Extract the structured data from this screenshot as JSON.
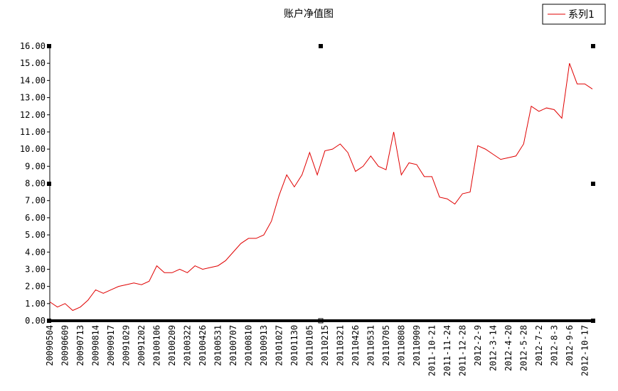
{
  "chart_data": {
    "type": "line",
    "title": "账户净值图",
    "categories": [
      "20090504",
      null,
      "20090609",
      null,
      "20090713",
      null,
      "20090814",
      null,
      "20090917",
      null,
      "20091029",
      null,
      "20091202",
      null,
      "20100106",
      null,
      "20100209",
      null,
      "20100322",
      null,
      "20100426",
      null,
      "20100531",
      null,
      "20100707",
      null,
      "20100810",
      null,
      "20100913",
      null,
      "20101027",
      null,
      "20101130",
      null,
      "20110105",
      null,
      "20110215",
      null,
      "20110321",
      null,
      "20110426",
      null,
      "20110531",
      null,
      "20110705",
      null,
      "20110808",
      null,
      "20110909",
      null,
      "2011-10-21",
      null,
      "2011-11-24",
      null,
      "2011-12-28",
      null,
      "2012-2-9",
      null,
      "2012-3-14",
      null,
      "2012-4-20",
      null,
      "2012-5-28",
      null,
      "2012-7-2",
      null,
      "2012-8-3",
      null,
      "2012-9-6",
      null,
      "2012-10-17",
      null
    ],
    "series": [
      {
        "name": "系列1",
        "color": "#e00000",
        "values": [
          1.1,
          0.8,
          1.0,
          0.6,
          0.8,
          1.2,
          1.8,
          1.6,
          1.8,
          2.0,
          2.1,
          2.2,
          2.1,
          2.3,
          3.2,
          2.8,
          2.8,
          3.0,
          2.8,
          3.2,
          3.0,
          3.1,
          3.2,
          3.5,
          4.0,
          4.5,
          4.8,
          4.8,
          5.0,
          5.8,
          7.3,
          8.5,
          7.8,
          8.5,
          9.8,
          8.5,
          9.9,
          10.0,
          10.3,
          9.8,
          8.7,
          9.0,
          9.6,
          9.0,
          8.8,
          11.0,
          8.5,
          9.2,
          9.1,
          8.4,
          8.4,
          7.2,
          7.1,
          6.8,
          7.4,
          7.5,
          10.2,
          10.0,
          9.7,
          9.4,
          9.5,
          9.6,
          10.3,
          12.5,
          12.2,
          12.4,
          12.3,
          11.8,
          15.0,
          13.8,
          13.8,
          13.5
        ]
      }
    ],
    "ylim": [
      0,
      16
    ],
    "yticks": [
      {
        "value": 0,
        "label": "0.00"
      },
      {
        "value": 1,
        "label": "1.00"
      },
      {
        "value": 2,
        "label": "2.00"
      },
      {
        "value": 3,
        "label": "3.00"
      },
      {
        "value": 4,
        "label": "4.00"
      },
      {
        "value": 5,
        "label": "5.00"
      },
      {
        "value": 6,
        "label": "6.00"
      },
      {
        "value": 7,
        "label": "7.00"
      },
      {
        "value": 8,
        "label": "8.00"
      },
      {
        "value": 9,
        "label": "9.00"
      },
      {
        "value": 10,
        "label": "10.00"
      },
      {
        "value": 11,
        "label": "11.00"
      },
      {
        "value": 12,
        "label": "12.00"
      },
      {
        "value": 13,
        "label": "13.00"
      },
      {
        "value": 14,
        "label": "14.00"
      },
      {
        "value": 15,
        "label": "15.00"
      },
      {
        "value": 16,
        "label": "16.00"
      }
    ],
    "legend": "top-right"
  }
}
